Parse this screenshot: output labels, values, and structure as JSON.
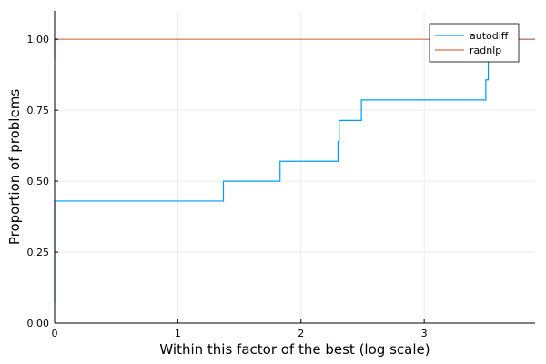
{
  "chart_data": {
    "type": "line",
    "step": true,
    "xlabel": "Within this factor of the best (log scale)",
    "ylabel": "Proportion of problems",
    "xlim": [
      0,
      3.9
    ],
    "ylim": [
      0,
      1.1
    ],
    "x_ticks": [
      0,
      1,
      2,
      3
    ],
    "y_ticks": [
      0.0,
      0.25,
      0.5,
      0.75,
      1.0
    ],
    "x_tick_labels": [
      "0",
      "1",
      "2",
      "3"
    ],
    "y_tick_labels": [
      "0.00",
      "0.25",
      "0.50",
      "0.75",
      "1.00"
    ],
    "grid": true,
    "legend_position": "top-right",
    "series": [
      {
        "name": "autodiff",
        "color": "#009AFA",
        "x": [
          0,
          0,
          0,
          1.37,
          1.37,
          1.83,
          1.83,
          2.3,
          2.3,
          2.31,
          2.31,
          2.49,
          2.49,
          3.5,
          3.5,
          3.52,
          3.52,
          3.9
        ],
        "y": [
          0.07,
          0.43,
          0.43,
          0.43,
          0.5,
          0.5,
          0.57,
          0.57,
          0.64,
          0.64,
          0.714,
          0.714,
          0.786,
          0.786,
          0.857,
          0.857,
          1.0,
          1.0
        ]
      },
      {
        "name": "radnlp",
        "color": "#E26F46",
        "x": [
          0,
          0,
          3.9
        ],
        "y": [
          0.93,
          1.0,
          1.0
        ]
      }
    ]
  }
}
